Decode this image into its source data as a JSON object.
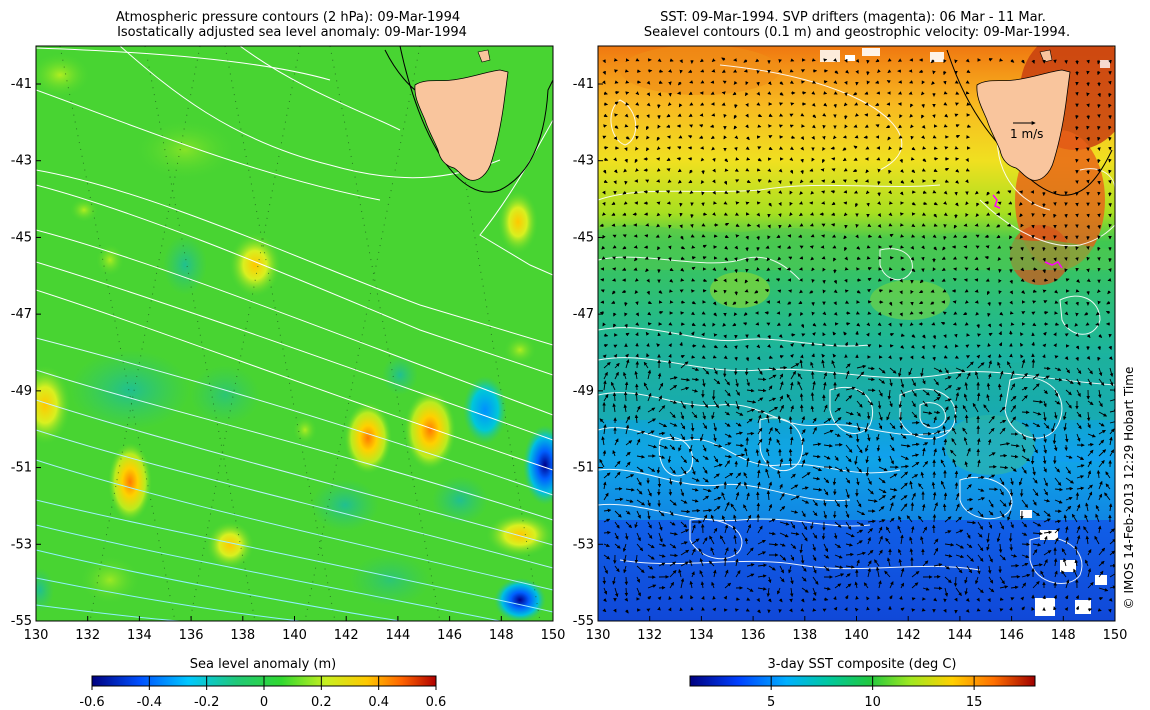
{
  "left_panel": {
    "title_line1": "Atmospheric pressure contours (2 hPa): 09-Mar-1994",
    "title_line2": "Isostatically adjusted sea level anomaly: 09-Mar-1994",
    "colorbar_label": "Sea level anomaly (m)",
    "colorbar_ticks": [
      "-0.6",
      "-0.4",
      "-0.2",
      "0",
      "0.2",
      "0.4",
      "0.6"
    ]
  },
  "right_panel": {
    "title_line1": "SST: 09-Mar-1994. SVP drifters (magenta): 06 Mar - 11 Mar.",
    "title_line2": "Sealevel contours (0.1 m) and geostrophic velocity: 09-Mar-1994.",
    "colorbar_label": "3-day SST composite (deg C)",
    "colorbar_ticks": [
      "5",
      "10",
      "15"
    ],
    "velocity_scale_label": "1 m/s"
  },
  "axes": {
    "lon_ticks": [
      "130",
      "132",
      "134",
      "136",
      "138",
      "140",
      "142",
      "144",
      "146",
      "148",
      "150"
    ],
    "lat_ticks": [
      "-41",
      "-43",
      "-45",
      "-47",
      "-49",
      "-51",
      "-53",
      "-55"
    ]
  },
  "credit": "© IMOS 14-Feb-2013 12:29 Hobart Time",
  "colors": {
    "land": "#f9c59d",
    "sla_colormap": [
      "#00007f",
      "#0050ff",
      "#00c8ff",
      "#20c878",
      "#30d830",
      "#c8f020",
      "#ffc800",
      "#ff6400",
      "#b00000"
    ],
    "sst_colormap": [
      "#00007f",
      "#0040ff",
      "#00b0ff",
      "#00c8a0",
      "#20c840",
      "#a0e820",
      "#ffd000",
      "#ff7000",
      "#a00000"
    ]
  }
}
